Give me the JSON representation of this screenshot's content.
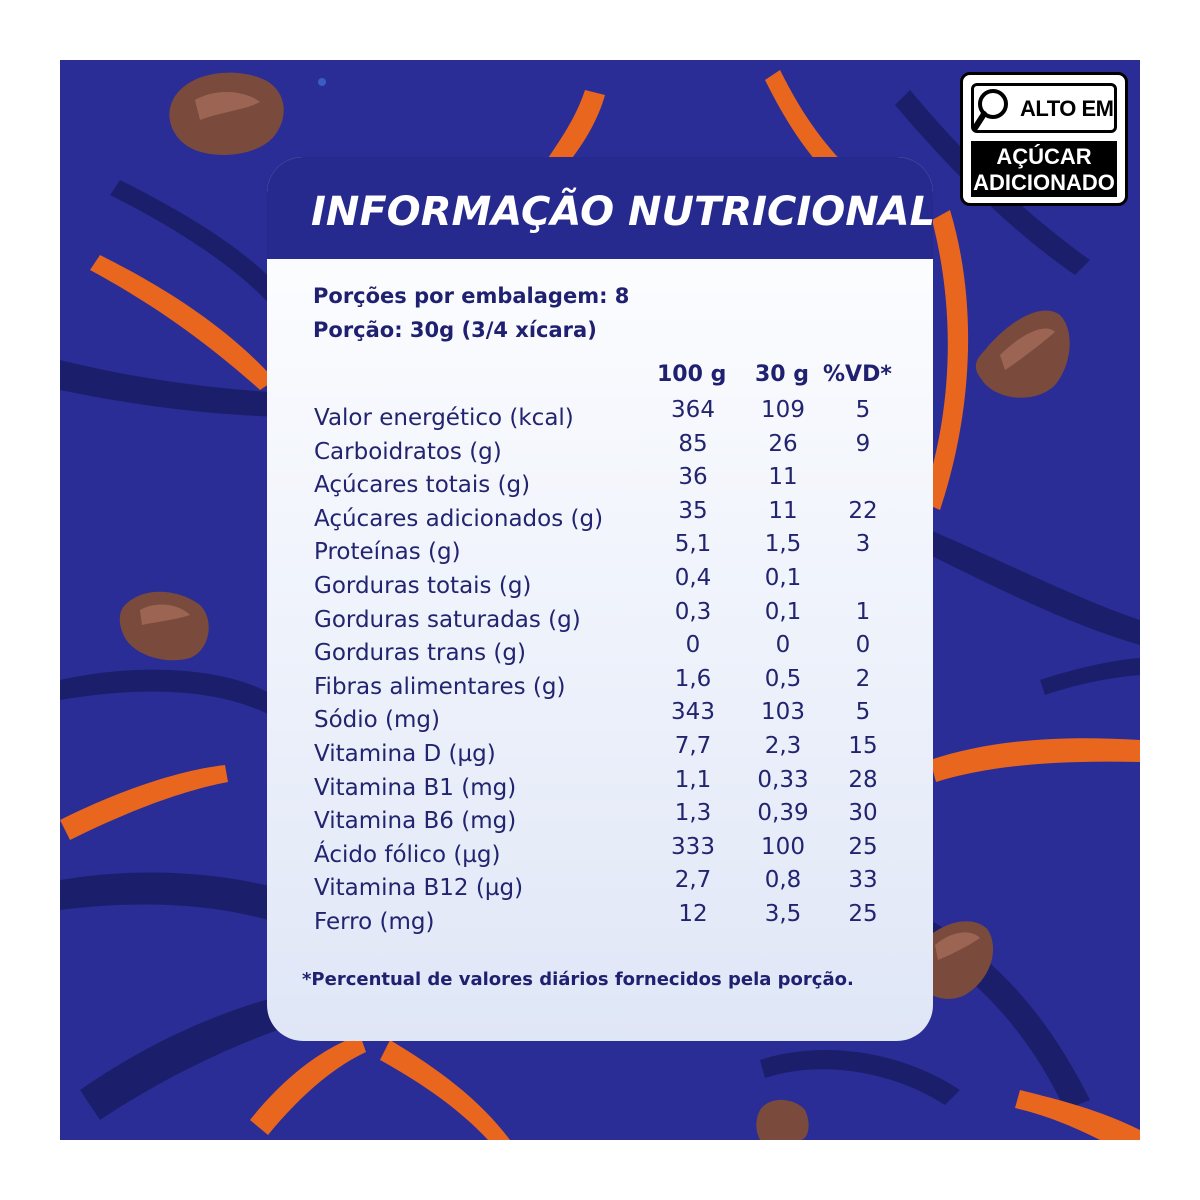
{
  "warning_label": {
    "top_text": "ALTO EM",
    "bottom_line1": "AÇÚCAR",
    "bottom_line2": "ADICIONADO"
  },
  "nutrition": {
    "title": "INFORMAÇÃO NUTRICIONAL",
    "servings_per_package": "Porções por embalagem: 8",
    "serving_size": "Porção: 30g (3/4 xícara)",
    "columns": [
      "100 g",
      "30 g",
      "%VD*"
    ],
    "rows": [
      {
        "name": "Valor energético (kcal)",
        "per100": "364",
        "per30": "109",
        "vd": "5"
      },
      {
        "name": "Carboidratos (g)",
        "per100": "85",
        "per30": "26",
        "vd": "9"
      },
      {
        "name": "Açúcares totais (g)",
        "per100": "36",
        "per30": "11",
        "vd": ""
      },
      {
        "name": "Açúcares adicionados (g)",
        "per100": "35",
        "per30": "11",
        "vd": "22"
      },
      {
        "name": "Proteínas (g)",
        "per100": "5,1",
        "per30": "1,5",
        "vd": "3"
      },
      {
        "name": "Gorduras totais (g)",
        "per100": "0,4",
        "per30": "0,1",
        "vd": ""
      },
      {
        "name": "Gorduras saturadas (g)",
        "per100": "0,3",
        "per30": "0,1",
        "vd": "1"
      },
      {
        "name": "Gorduras trans (g)",
        "per100": "0",
        "per30": "0",
        "vd": "0"
      },
      {
        "name": "Fibras alimentares (g)",
        "per100": "1,6",
        "per30": "0,5",
        "vd": "2"
      },
      {
        "name": "Sódio (mg)",
        "per100": "343",
        "per30": "103",
        "vd": "5"
      },
      {
        "name": "Vitamina D (µg)",
        "per100": "7,7",
        "per30": "2,3",
        "vd": "15"
      },
      {
        "name": "Vitamina B1 (mg)",
        "per100": "1,1",
        "per30": "0,33",
        "vd": "28"
      },
      {
        "name": "Vitamina B6 (mg)",
        "per100": "1,3",
        "per30": "0,39",
        "vd": "30"
      },
      {
        "name": "Ácido fólico (µg)",
        "per100": "333",
        "per30": "100",
        "vd": "25"
      },
      {
        "name": "Vitamina B12 (µg)",
        "per100": "2,7",
        "per30": "0,8",
        "vd": "33"
      },
      {
        "name": "Ferro (mg)",
        "per100": "12",
        "per30": "3,5",
        "vd": "25"
      }
    ],
    "footnote": "*Percentual de valores diários fornecidos pela porção."
  },
  "colors": {
    "background": "#2a2d95",
    "accent_orange": "#e8661e",
    "dark_navy": "#1b1f6b",
    "card_header": "#262a8e",
    "cereal_brown": "#7a4a3c"
  }
}
